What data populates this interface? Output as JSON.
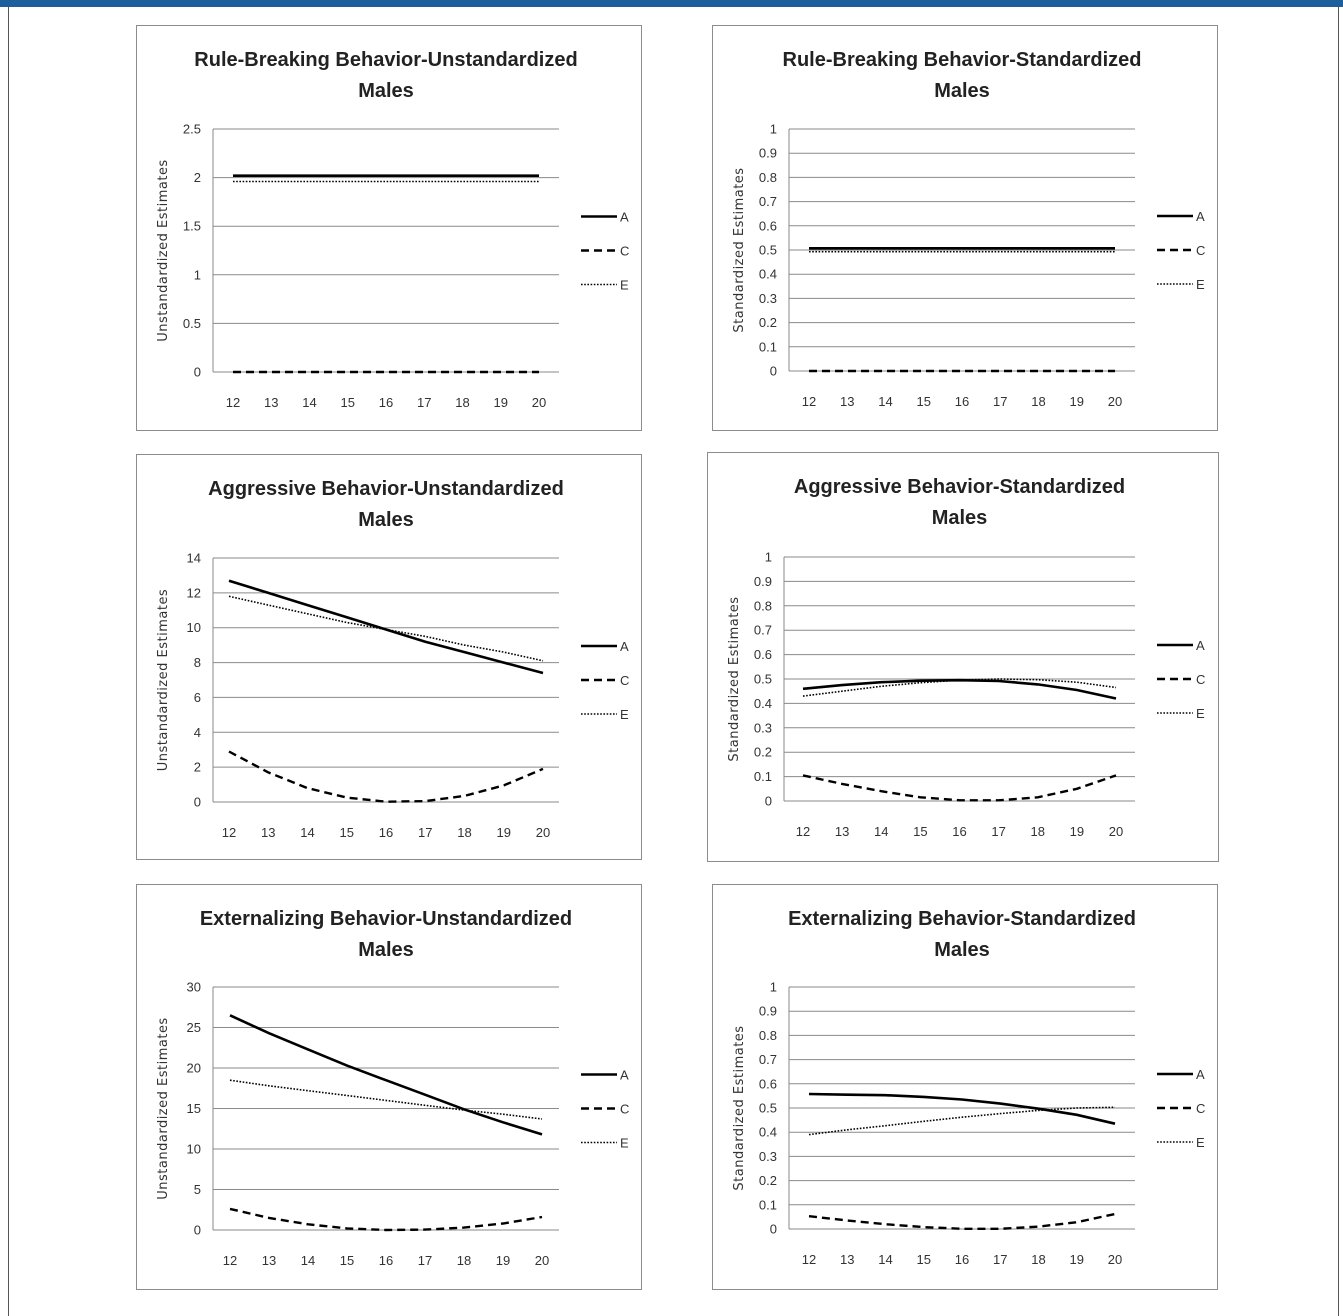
{
  "page": {
    "accent_color": "#1c5f9a",
    "line_color": "#000000"
  },
  "chart_data": [
    {
      "type": "line",
      "title": [
        "Rule-Breaking Behavior-Unstandardized",
        "Males"
      ],
      "ylabel": "Unstandardized Estimates",
      "xlabel": "",
      "x": [
        12,
        13,
        14,
        15,
        16,
        17,
        18,
        19,
        20
      ],
      "ylim": [
        0,
        2.5
      ],
      "yticks": [
        "0",
        "0.5",
        "1",
        "1.5",
        "2",
        "2.5"
      ],
      "grid": true,
      "legend_position": "right",
      "series": [
        {
          "name": "A",
          "style": "solid",
          "values": [
            2.02,
            2.02,
            2.02,
            2.02,
            2.02,
            2.02,
            2.02,
            2.02,
            2.02
          ]
        },
        {
          "name": "C",
          "style": "dashed",
          "values": [
            0,
            0,
            0,
            0,
            0,
            0,
            0,
            0,
            0
          ]
        },
        {
          "name": "E",
          "style": "dotted",
          "values": [
            1.96,
            1.96,
            1.96,
            1.96,
            1.96,
            1.96,
            1.96,
            1.96,
            1.96
          ]
        }
      ]
    },
    {
      "type": "line",
      "title": [
        "Rule-Breaking Behavior-Standardized",
        "Males"
      ],
      "ylabel": "Standardized Estimates",
      "xlabel": "",
      "x": [
        12,
        13,
        14,
        15,
        16,
        17,
        18,
        19,
        20
      ],
      "ylim": [
        0,
        1
      ],
      "yticks": [
        "0",
        "0.1",
        "0.2",
        "0.3",
        "0.4",
        "0.5",
        "0.6",
        "0.7",
        "0.8",
        "0.9",
        "1"
      ],
      "grid": true,
      "legend_position": "right",
      "series": [
        {
          "name": "A",
          "style": "solid",
          "values": [
            0.507,
            0.507,
            0.507,
            0.507,
            0.507,
            0.507,
            0.507,
            0.507,
            0.507
          ]
        },
        {
          "name": "C",
          "style": "dashed",
          "values": [
            0,
            0,
            0,
            0,
            0,
            0,
            0,
            0,
            0
          ]
        },
        {
          "name": "E",
          "style": "dotted",
          "values": [
            0.493,
            0.493,
            0.493,
            0.493,
            0.493,
            0.493,
            0.493,
            0.493,
            0.493
          ]
        }
      ]
    },
    {
      "type": "line",
      "title": [
        "Aggressive Behavior-Unstandardized",
        "Males"
      ],
      "ylabel": "Unstandardized Estimates",
      "xlabel": "",
      "x": [
        12,
        13,
        14,
        15,
        16,
        17,
        18,
        19,
        20
      ],
      "ylim": [
        0,
        14
      ],
      "yticks": [
        "0",
        "2",
        "4",
        "6",
        "8",
        "10",
        "12",
        "14"
      ],
      "grid": true,
      "legend_position": "right",
      "series": [
        {
          "name": "A",
          "style": "solid",
          "values": [
            12.7,
            12.0,
            11.3,
            10.6,
            9.9,
            9.2,
            8.6,
            8.0,
            7.4
          ]
        },
        {
          "name": "C",
          "style": "dashed",
          "values": [
            2.9,
            1.7,
            0.8,
            0.25,
            0.02,
            0.05,
            0.35,
            0.95,
            1.9
          ]
        },
        {
          "name": "E",
          "style": "dotted",
          "values": [
            11.8,
            11.3,
            10.8,
            10.3,
            9.9,
            9.5,
            9.0,
            8.6,
            8.1
          ]
        }
      ]
    },
    {
      "type": "line",
      "title": [
        "Aggressive Behavior-Standardized",
        "Males"
      ],
      "ylabel": "Standardized Estimates",
      "xlabel": "",
      "x": [
        12,
        13,
        14,
        15,
        16,
        17,
        18,
        19,
        20
      ],
      "ylim": [
        0,
        1
      ],
      "yticks": [
        "0",
        "0.1",
        "0.2",
        "0.3",
        "0.4",
        "0.5",
        "0.6",
        "0.7",
        "0.8",
        "0.9",
        "1"
      ],
      "grid": true,
      "legend_position": "right",
      "series": [
        {
          "name": "A",
          "style": "solid",
          "values": [
            0.46,
            0.475,
            0.487,
            0.493,
            0.495,
            0.492,
            0.478,
            0.455,
            0.42
          ]
        },
        {
          "name": "C",
          "style": "dashed",
          "values": [
            0.105,
            0.07,
            0.04,
            0.015,
            0.003,
            0.003,
            0.015,
            0.05,
            0.105
          ]
        },
        {
          "name": "E",
          "style": "dotted",
          "values": [
            0.43,
            0.45,
            0.47,
            0.485,
            0.495,
            0.5,
            0.497,
            0.487,
            0.465
          ]
        }
      ]
    },
    {
      "type": "line",
      "title": [
        "Externalizing Behavior-Unstandardized",
        "Males"
      ],
      "ylabel": "Unstandardized Estimates",
      "xlabel": "",
      "x": [
        12,
        13,
        14,
        15,
        16,
        17,
        18,
        19,
        20
      ],
      "ylim": [
        0,
        30
      ],
      "yticks": [
        "0",
        "5",
        "10",
        "15",
        "20",
        "25",
        "30"
      ],
      "grid": true,
      "legend_position": "right",
      "series": [
        {
          "name": "A",
          "style": "solid",
          "values": [
            26.5,
            24.3,
            22.3,
            20.3,
            18.5,
            16.7,
            14.9,
            13.3,
            11.8
          ]
        },
        {
          "name": "C",
          "style": "dashed",
          "values": [
            2.6,
            1.5,
            0.7,
            0.2,
            0.0,
            0.05,
            0.3,
            0.8,
            1.6
          ]
        },
        {
          "name": "E",
          "style": "dotted",
          "values": [
            18.5,
            17.8,
            17.2,
            16.6,
            16.0,
            15.4,
            14.8,
            14.3,
            13.7
          ]
        }
      ]
    },
    {
      "type": "line",
      "title": [
        "Externalizing Behavior-Standardized",
        "Males"
      ],
      "ylabel": "Standardized Estimates",
      "xlabel": "",
      "x": [
        12,
        13,
        14,
        15,
        16,
        17,
        18,
        19,
        20
      ],
      "ylim": [
        0,
        1
      ],
      "yticks": [
        "0",
        "0.1",
        "0.2",
        "0.3",
        "0.4",
        "0.5",
        "0.6",
        "0.7",
        "0.8",
        "0.9",
        "1"
      ],
      "grid": true,
      "legend_position": "right",
      "series": [
        {
          "name": "A",
          "style": "solid",
          "values": [
            0.558,
            0.555,
            0.553,
            0.546,
            0.535,
            0.518,
            0.497,
            0.472,
            0.435
          ]
        },
        {
          "name": "C",
          "style": "dashed",
          "values": [
            0.053,
            0.035,
            0.02,
            0.008,
            0.001,
            0.001,
            0.01,
            0.028,
            0.062
          ]
        },
        {
          "name": "E",
          "style": "dotted",
          "values": [
            0.39,
            0.41,
            0.427,
            0.445,
            0.462,
            0.477,
            0.49,
            0.5,
            0.503
          ]
        }
      ]
    }
  ]
}
